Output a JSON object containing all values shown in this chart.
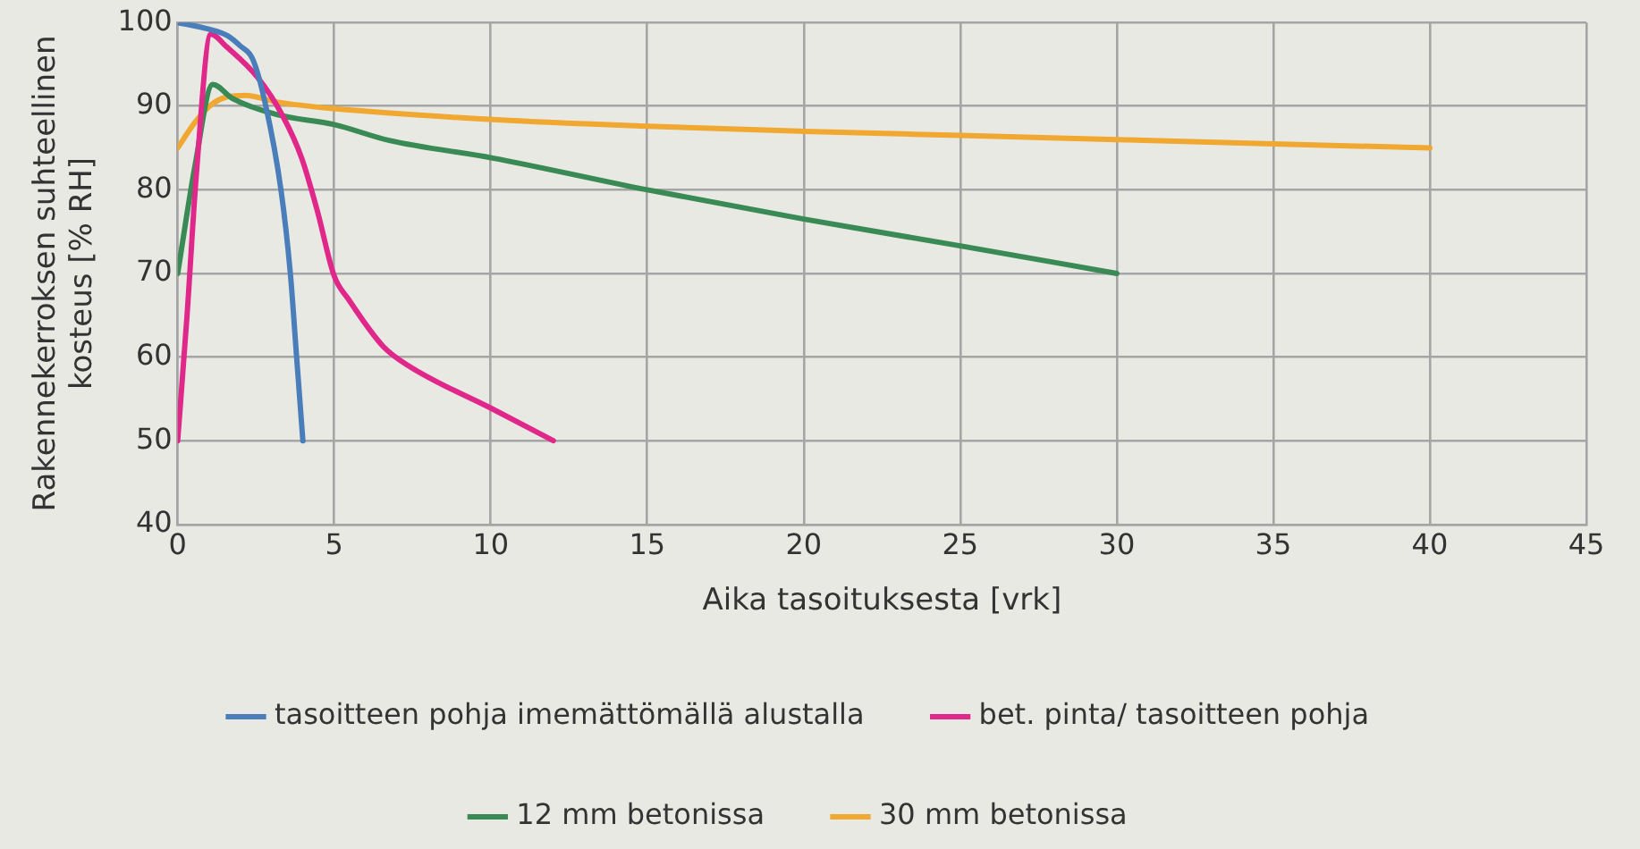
{
  "chart_data": {
    "type": "line",
    "xlabel": "Aika tasoituksesta [vrk]",
    "ylabel": "Rakennekerroksen suhteellinen kosteus [% RH]",
    "xlim": [
      0,
      45
    ],
    "xticks": [
      0,
      5,
      10,
      15,
      20,
      25,
      30,
      35,
      40,
      45
    ],
    "ylim": [
      40,
      100
    ],
    "yticks": [
      40,
      50,
      60,
      70,
      80,
      90,
      100
    ],
    "grid": true,
    "legend": "bottom",
    "marker": "none",
    "line_style": "solid",
    "series": [
      {
        "name": "tasoitteen pohja imemättömällä alustalla",
        "color": "#4a7ebb",
        "x": [
          0,
          1,
          1.6,
          2,
          2.4,
          2.8,
          3.3,
          3.6,
          3.8,
          4
        ],
        "values": [
          100,
          99.2,
          98.4,
          97.2,
          95.6,
          90.3,
          80,
          70,
          60,
          50
        ]
      },
      {
        "name": "bet. pinta/ tasoitteen pohja",
        "color": "#e0288a",
        "x": [
          0,
          0.3,
          0.6,
          1.06,
          1.56,
          2.56,
          3.36,
          3.96,
          4.46,
          5,
          5.46,
          6.56,
          7.36,
          10.16,
          12
        ],
        "values": [
          50,
          65,
          82,
          98.6,
          97.1,
          93.4,
          88.8,
          83.8,
          77.5,
          69.7,
          66.9,
          61.3,
          59,
          53.6,
          50
        ]
      },
      {
        "name": "12 mm betonissa",
        "color": "#3a8a55",
        "x": [
          0,
          0.56,
          1.12,
          1.76,
          3.16,
          5,
          6.76,
          10.06,
          15,
          20,
          25,
          30
        ],
        "values": [
          70,
          83,
          92.6,
          90.9,
          89,
          87.8,
          85.9,
          83.8,
          80,
          76.5,
          73.3,
          70
        ]
      },
      {
        "name": "30 mm betonissa",
        "color": "#f0a830",
        "x": [
          0,
          0.56,
          1.12,
          1.56,
          2.16,
          3.16,
          5,
          10.06,
          15,
          20,
          25,
          30,
          35,
          40
        ],
        "values": [
          85,
          88.1,
          90.3,
          91.1,
          91.3,
          90.5,
          89.7,
          88.4,
          87.6,
          87,
          86.5,
          86,
          85.5,
          85
        ]
      }
    ]
  }
}
